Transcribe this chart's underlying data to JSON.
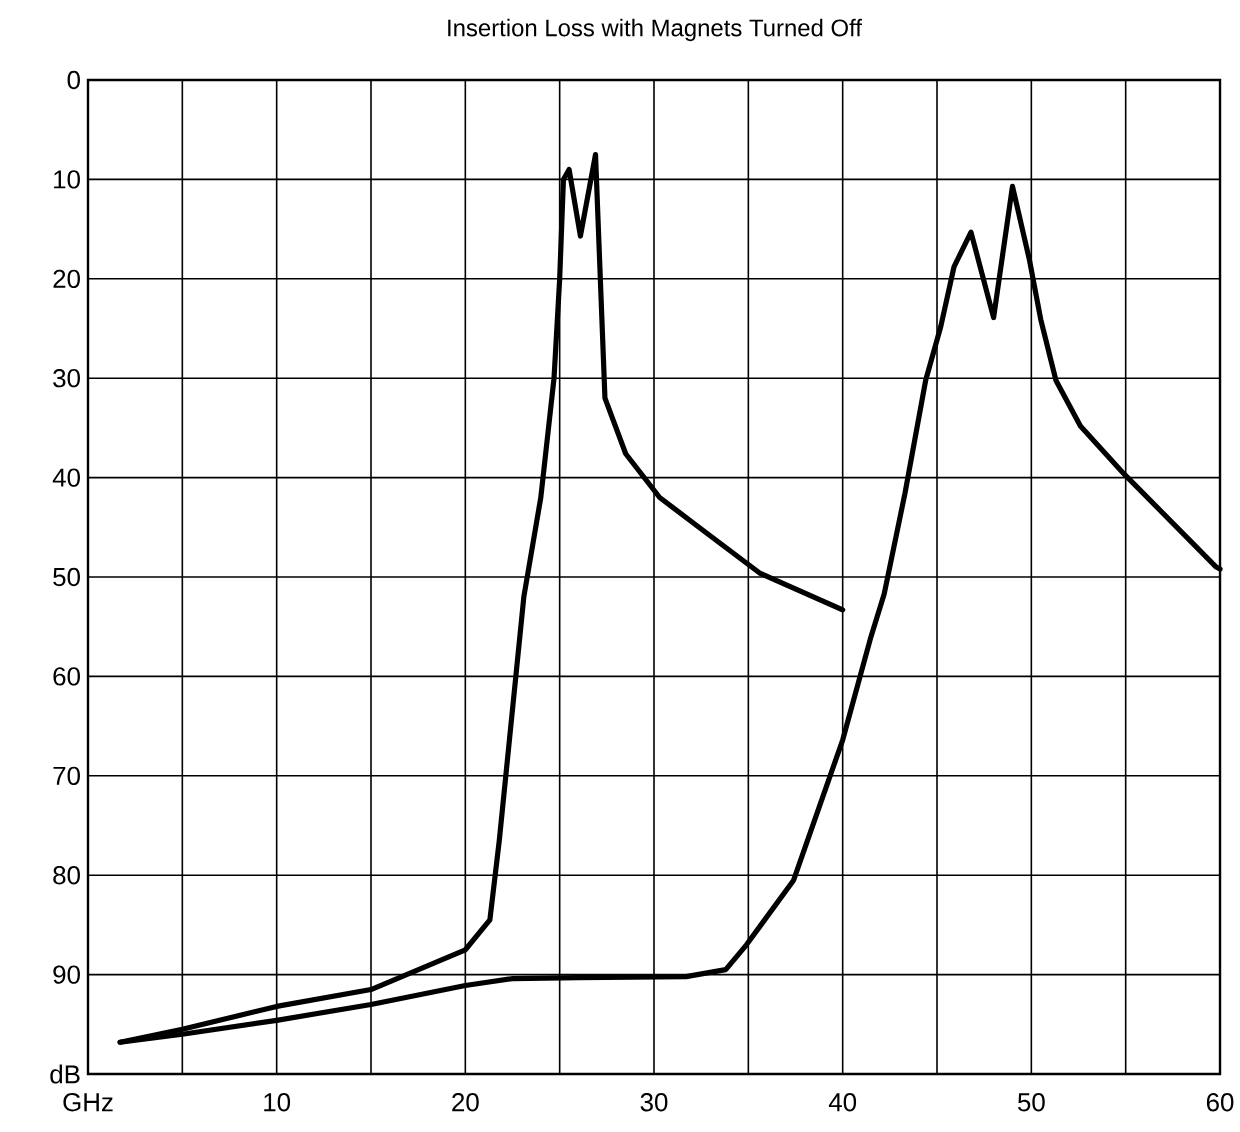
{
  "chart_data": {
    "type": "line",
    "title": "Insertion Loss with Magnets Turned Off",
    "series": [
      {
        "color": "#000000",
        "x": [
          1.7,
          5,
          10,
          15,
          20,
          21.3,
          21.8,
          23.1,
          24,
          24.7,
          25,
          25.2,
          25.5,
          26.1,
          26.9,
          27.4,
          28.5,
          30.3,
          32.8,
          35.6,
          40
        ],
        "values": [
          96.8,
          95.5,
          93.2,
          91.5,
          87.5,
          84.5,
          76.5,
          52,
          42,
          30,
          20,
          10,
          9,
          15.7,
          7.5,
          32,
          37.6,
          42,
          45.6,
          49.6,
          53.3
        ]
      },
      {
        "color": "#000000",
        "x": [
          1.7,
          5,
          10,
          15,
          20,
          22.5,
          26,
          31.7,
          33.8,
          34.9,
          37.4,
          40,
          41.5,
          42.2,
          43.3,
          44.4,
          45.2,
          45.9,
          46.8,
          48,
          49,
          49.9,
          50.5,
          51.3,
          52.6,
          54.9,
          59.8,
          60
        ],
        "values": [
          96.8,
          96,
          94.6,
          93,
          91.1,
          90.4,
          90.3,
          90.2,
          89.5,
          87,
          80.5,
          66.4,
          56,
          51.7,
          41.6,
          30.2,
          24.8,
          18.8,
          15.3,
          23.9,
          10.7,
          18.1,
          24.1,
          30.2,
          34.8,
          39.6,
          49,
          49.2
        ]
      }
    ],
    "xlim": [
      0,
      60
    ],
    "ylim": [
      100,
      0
    ],
    "xticks": [
      {
        "value": 0,
        "label": "GHz"
      },
      {
        "value": 5,
        "label": null
      },
      10,
      {
        "value": 15,
        "label": null
      },
      20,
      {
        "value": 25,
        "label": null
      },
      30,
      {
        "value": 35,
        "label": null
      },
      40,
      {
        "value": 45,
        "label": null
      },
      50,
      {
        "value": 55,
        "label": null
      },
      60
    ],
    "yticks": [
      0,
      10,
      20,
      30,
      40,
      50,
      60,
      70,
      80,
      90,
      {
        "value": 100,
        "label": "dB"
      }
    ],
    "grid": true
  }
}
